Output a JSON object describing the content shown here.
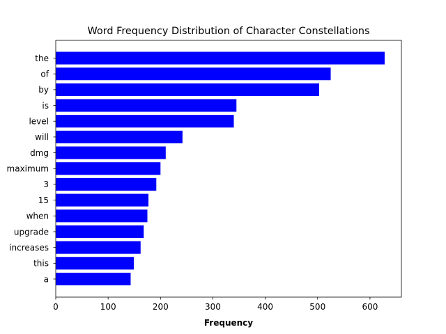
{
  "chart_data": {
    "type": "bar",
    "orientation": "horizontal",
    "title": "Word Frequency Distribution of Character Constellations",
    "xlabel": "Frequency",
    "ylabel": "",
    "categories": [
      "the",
      "of",
      "by",
      "is",
      "level",
      "will",
      "dmg",
      "maximum",
      "3",
      "15",
      "when",
      "upgrade",
      "increases",
      "this",
      "a"
    ],
    "values": [
      628,
      525,
      503,
      345,
      340,
      242,
      210,
      200,
      192,
      177,
      175,
      168,
      162,
      149,
      143
    ],
    "xlim": [
      0,
      660
    ],
    "xticks": [
      0,
      100,
      200,
      300,
      400,
      500,
      600
    ],
    "bar_color": "#0000ff",
    "grid": false,
    "legend": "none"
  }
}
